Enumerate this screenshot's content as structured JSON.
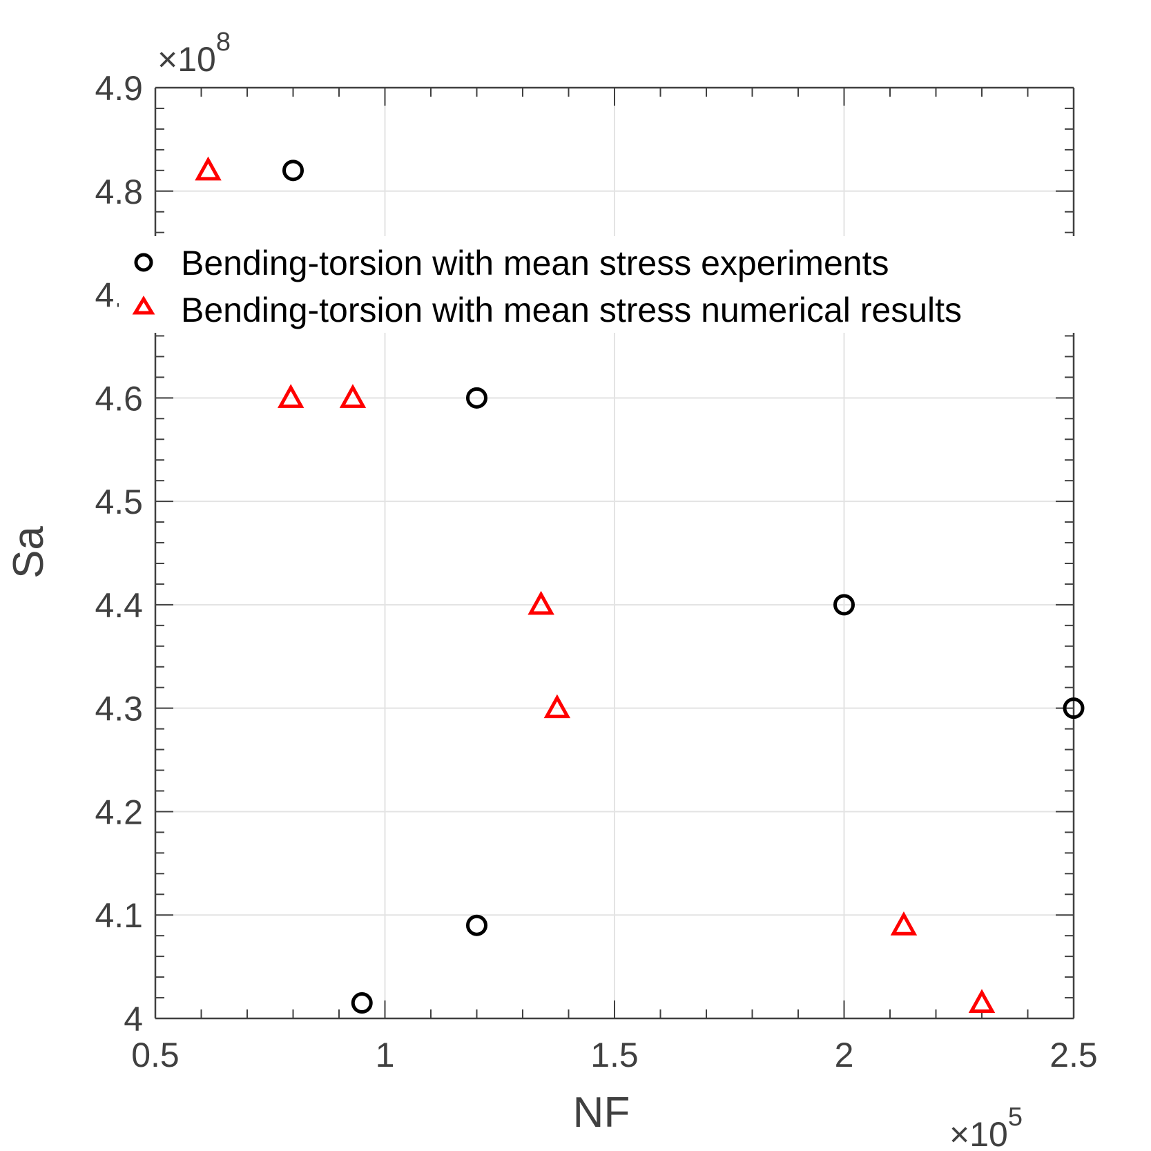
{
  "chart_data": {
    "type": "scatter",
    "xlabel": "NF",
    "ylabel": "Sa",
    "x_exponent_label": "×10",
    "x_exponent": "5",
    "y_exponent_label": "×10",
    "y_exponent": "8",
    "xlim": [
      0.5,
      2.5
    ],
    "ylim": [
      4.0,
      4.9
    ],
    "x_scale": 100000,
    "y_scale": 100000000,
    "x_ticks": [
      {
        "value": 0.5,
        "label": "0.5"
      },
      {
        "value": 1.0,
        "label": "1"
      },
      {
        "value": 1.5,
        "label": "1.5"
      },
      {
        "value": 2.0,
        "label": "2"
      },
      {
        "value": 2.5,
        "label": "2.5"
      }
    ],
    "y_ticks": [
      {
        "value": 4.0,
        "label": "4"
      },
      {
        "value": 4.1,
        "label": "4.1"
      },
      {
        "value": 4.2,
        "label": "4.2"
      },
      {
        "value": 4.3,
        "label": "4.3"
      },
      {
        "value": 4.4,
        "label": "4.4"
      },
      {
        "value": 4.5,
        "label": "4.5"
      },
      {
        "value": 4.6,
        "label": "4.6"
      },
      {
        "value": 4.7,
        "label": "4.7"
      },
      {
        "value": 4.8,
        "label": "4.8"
      },
      {
        "value": 4.9,
        "label": "4.9"
      }
    ],
    "grid": true,
    "legend_position": "top",
    "series": [
      {
        "name": "Bending-torsion with mean stress experiments",
        "marker": "circle",
        "color": "#000000",
        "points": [
          {
            "x": 0.8,
            "y": 4.82
          },
          {
            "x": 1.2,
            "y": 4.6
          },
          {
            "x": 2.0,
            "y": 4.4
          },
          {
            "x": 2.5,
            "y": 4.3
          },
          {
            "x": 1.2,
            "y": 4.09
          },
          {
            "x": 0.95,
            "y": 4.015
          }
        ]
      },
      {
        "name": "Bending-torsion with mean stress numerical results",
        "marker": "triangle",
        "color": "#ff0000",
        "points": [
          {
            "x": 0.615,
            "y": 4.82
          },
          {
            "x": 0.795,
            "y": 4.6
          },
          {
            "x": 0.93,
            "y": 4.6
          },
          {
            "x": 1.34,
            "y": 4.4
          },
          {
            "x": 1.375,
            "y": 4.3
          },
          {
            "x": 2.13,
            "y": 4.09
          },
          {
            "x": 2.3,
            "y": 4.015
          }
        ]
      }
    ]
  }
}
